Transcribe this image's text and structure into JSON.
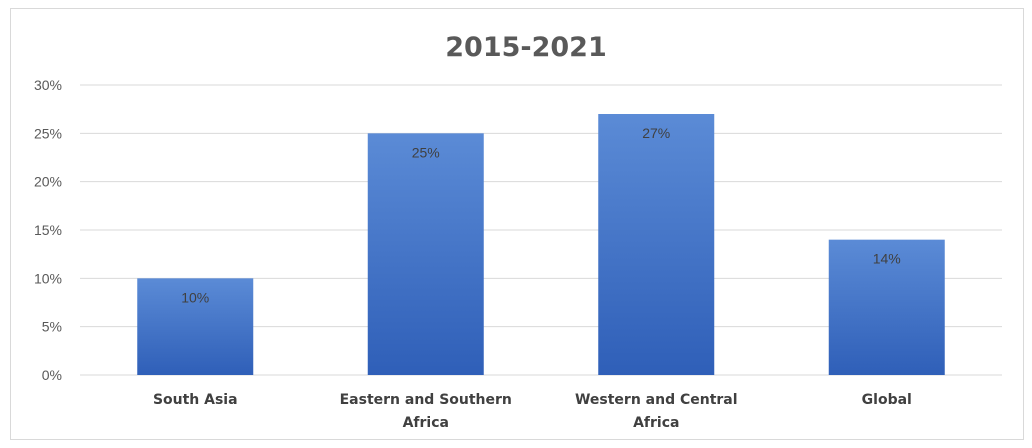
{
  "chart_data": {
    "type": "bar",
    "title": "2015-2021",
    "xlabel": "",
    "ylabel": "",
    "categories": [
      [
        "South Asia"
      ],
      [
        "Eastern and Southern",
        "Africa"
      ],
      [
        "Western and Central",
        "Africa"
      ],
      [
        "Global"
      ]
    ],
    "values": [
      10,
      25,
      27,
      14
    ],
    "data_labels": [
      "10%",
      "25%",
      "27%",
      "14%"
    ],
    "ylim": [
      0,
      30
    ],
    "yticks": [
      0,
      5,
      10,
      15,
      20,
      25,
      30
    ],
    "ytick_labels": [
      "0%",
      "5%",
      "10%",
      "15%",
      "20%",
      "25%",
      "30%"
    ],
    "grid": true,
    "legend": "none",
    "bar_color": "#4472C4",
    "bar_color_light": "#5B8BD6",
    "bar_color_dark": "#2F5FB8"
  }
}
